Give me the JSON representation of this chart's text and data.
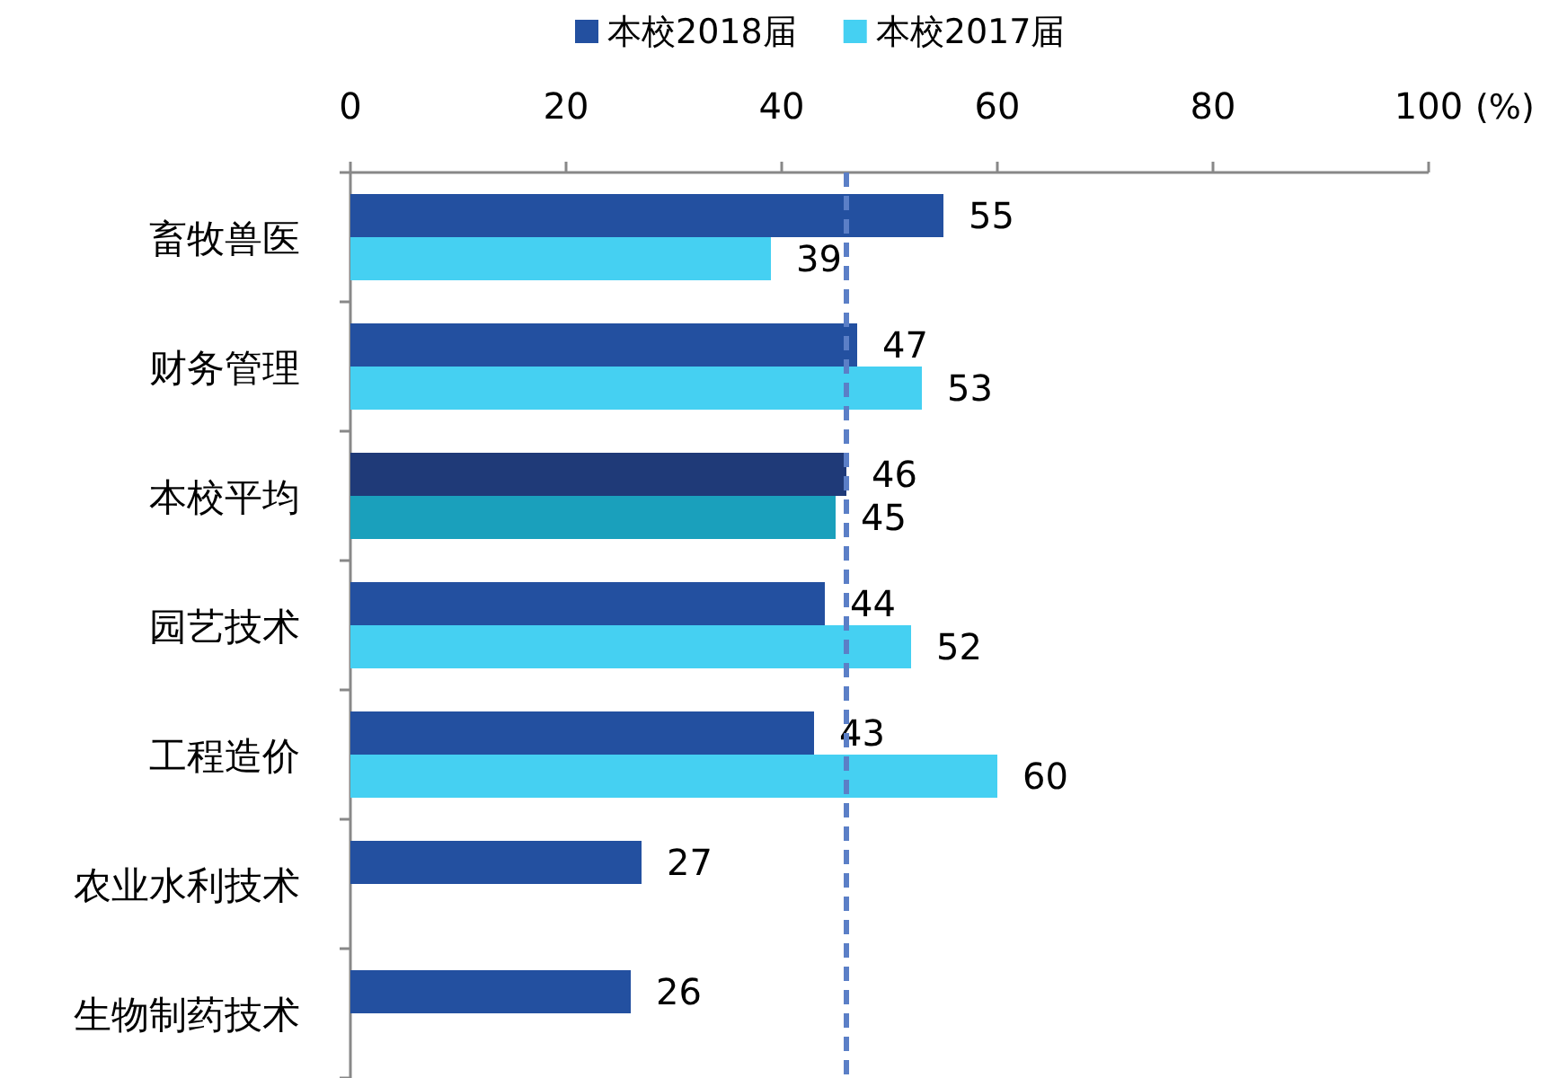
{
  "chart_data": {
    "type": "bar",
    "orientation": "horizontal",
    "xlabel": "(%)",
    "categories": [
      "畜牧兽医",
      "财务管理",
      "本校平均",
      "园艺技术",
      "工程造价",
      "农业水利技术",
      "生物制药技术"
    ],
    "series": [
      {
        "name": "本校2018届",
        "color": "#2350a0",
        "colors": [
          "#2350a0",
          "#2350a0",
          "#1f3a78",
          "#2350a0",
          "#2350a0",
          "#2350a0",
          "#2350a0"
        ],
        "values": [
          55,
          47,
          46,
          44,
          43,
          27,
          26
        ]
      },
      {
        "name": "本校2017届",
        "color": "#45d0f2",
        "colors": [
          "#45d0f2",
          "#45d0f2",
          "#1aa0bc",
          "#45d0f2",
          "#45d0f2",
          null,
          null
        ],
        "values": [
          39,
          53,
          45,
          52,
          60,
          null,
          null
        ]
      }
    ],
    "xlim": [
      0,
      100
    ],
    "xticks": [
      0,
      20,
      40,
      60,
      80,
      100
    ],
    "ref_lines": [
      {
        "axis": "x",
        "value": 46,
        "color": "#5b7fc7",
        "line_style": "dashed"
      }
    ],
    "data_labels": true,
    "legend": "top",
    "grid": false
  }
}
